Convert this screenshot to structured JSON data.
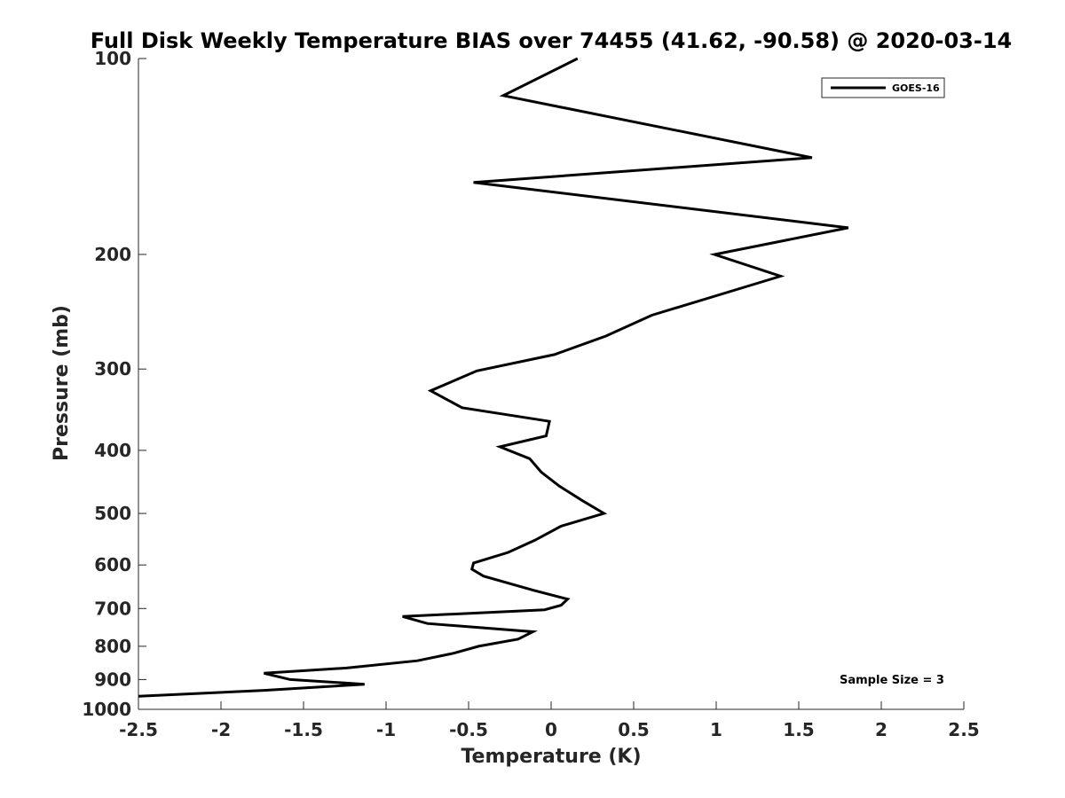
{
  "chart_data": {
    "type": "line",
    "title": "Full Disk Weekly Temperature BIAS over 74455 (41.62, -90.58) @ 2020-03-14",
    "xlabel": "Temperature (K)",
    "ylabel": "Pressure (mb)",
    "xlim": [
      -2.5,
      2.5
    ],
    "ylim": [
      100,
      1000
    ],
    "y_scale": "log",
    "y_reversed": true,
    "x_ticks": [
      "-2.5",
      "-2",
      "-1.5",
      "-1",
      "-0.5",
      "0",
      "0.5",
      "1",
      "1.5",
      "2",
      "2.5"
    ],
    "y_ticks": [
      "100",
      "200",
      "300",
      "400",
      "500",
      "600",
      "700",
      "800",
      "900",
      "1000"
    ],
    "grid": false,
    "legend_position": "top-right",
    "series": [
      {
        "name": "GOES-16",
        "color": "#000000",
        "points": [
          [
            0.16,
            100
          ],
          [
            -0.29,
            114
          ],
          [
            1.58,
            142
          ],
          [
            -0.47,
            155
          ],
          [
            1.8,
            182
          ],
          [
            0.99,
            200
          ],
          [
            1.39,
            216
          ],
          [
            0.61,
            248
          ],
          [
            0.33,
            267
          ],
          [
            0.02,
            285
          ],
          [
            -0.45,
            302
          ],
          [
            -0.73,
            324
          ],
          [
            -0.54,
            344
          ],
          [
            -0.01,
            361
          ],
          [
            -0.03,
            380
          ],
          [
            -0.31,
            395
          ],
          [
            -0.13,
            412
          ],
          [
            -0.06,
            432
          ],
          [
            0.05,
            454
          ],
          [
            0.19,
            478
          ],
          [
            0.32,
            500
          ],
          [
            0.06,
            523
          ],
          [
            -0.1,
            550
          ],
          [
            -0.26,
            574
          ],
          [
            -0.47,
            596
          ],
          [
            -0.48,
            609
          ],
          [
            -0.41,
            624
          ],
          [
            -0.11,
            656
          ],
          [
            0.1,
            677
          ],
          [
            0.06,
            692
          ],
          [
            -0.04,
            703
          ],
          [
            -0.9,
            720
          ],
          [
            -0.75,
            738
          ],
          [
            -0.11,
            760
          ],
          [
            -0.2,
            780
          ],
          [
            -0.44,
            800
          ],
          [
            -0.59,
            820
          ],
          [
            -0.81,
            842
          ],
          [
            -1.24,
            864
          ],
          [
            -1.74,
            880
          ],
          [
            -1.58,
            900
          ],
          [
            -1.13,
            915
          ],
          [
            -1.74,
            935
          ],
          [
            -2.5,
            955
          ]
        ]
      }
    ],
    "annotations": [
      "Sample Size = 3"
    ]
  }
}
